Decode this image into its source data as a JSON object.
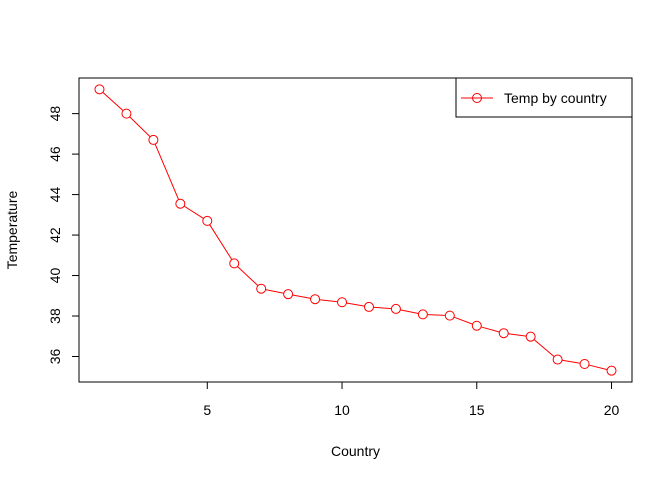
{
  "chart_data": {
    "type": "line",
    "title": "",
    "xlabel": "Country",
    "ylabel": "Temperature",
    "xlim": [
      0.24,
      20.76
    ],
    "ylim": [
      34.74,
      49.76
    ],
    "x_ticks": [
      5,
      10,
      15,
      20
    ],
    "y_ticks": [
      36,
      38,
      40,
      42,
      44,
      46,
      48
    ],
    "grid": false,
    "legend_position": "top-right",
    "marker": "open-circle",
    "series": [
      {
        "name": "Temp by country",
        "color": "#FF0000",
        "x": [
          1,
          2,
          3,
          4,
          5,
          6,
          7,
          8,
          9,
          10,
          11,
          12,
          13,
          14,
          15,
          16,
          17,
          18,
          19,
          20
        ],
        "y": [
          49.2,
          48.0,
          46.7,
          43.55,
          42.7,
          40.6,
          39.35,
          39.08,
          38.83,
          38.68,
          38.45,
          38.35,
          38.08,
          38.02,
          37.52,
          37.15,
          36.98,
          35.85,
          35.63,
          35.3
        ]
      }
    ]
  }
}
